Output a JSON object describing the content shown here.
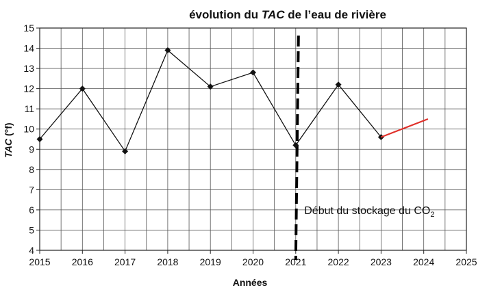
{
  "chart_data": {
    "type": "line",
    "title_parts": [
      {
        "text": "évolution du ",
        "italic": false
      },
      {
        "text": "TAC",
        "italic": true
      },
      {
        "text": " de l’eau de rivière",
        "italic": false
      }
    ],
    "xlabel": "Années",
    "ylabel_parts": [
      {
        "text": "TAC",
        "italic": true
      },
      {
        "text": " (°f)",
        "italic": false
      }
    ],
    "xlim": [
      2015,
      2025
    ],
    "ylim": [
      4,
      15
    ],
    "x_ticks": [
      2015,
      2016,
      2017,
      2018,
      2019,
      2020,
      2021,
      2022,
      2023,
      2024,
      2025
    ],
    "y_ticks": [
      4,
      5,
      6,
      7,
      8,
      9,
      10,
      11,
      12,
      13,
      14,
      15
    ],
    "x_minor_step": 0.5,
    "grid": true,
    "series": [
      {
        "x": [
          2015,
          2016,
          2017,
          2018,
          2019,
          2020,
          2021,
          2022,
          2023
        ],
        "y": [
          9.5,
          12.0,
          8.9,
          13.9,
          12.1,
          12.8,
          9.2,
          12.2,
          9.6
        ],
        "color": "#111111",
        "markers": "diamond"
      },
      {
        "x": [
          2023,
          2024.1
        ],
        "y": [
          9.6,
          10.5
        ],
        "color": "#e0302a",
        "markers": "none"
      }
    ],
    "vline": {
      "x": 2021,
      "style": "dashed",
      "color": "#000000",
      "label_text": "Début du stockage du CO",
      "label_subscript": "2",
      "label_x": 2021.2,
      "label_y": 6.0
    }
  }
}
